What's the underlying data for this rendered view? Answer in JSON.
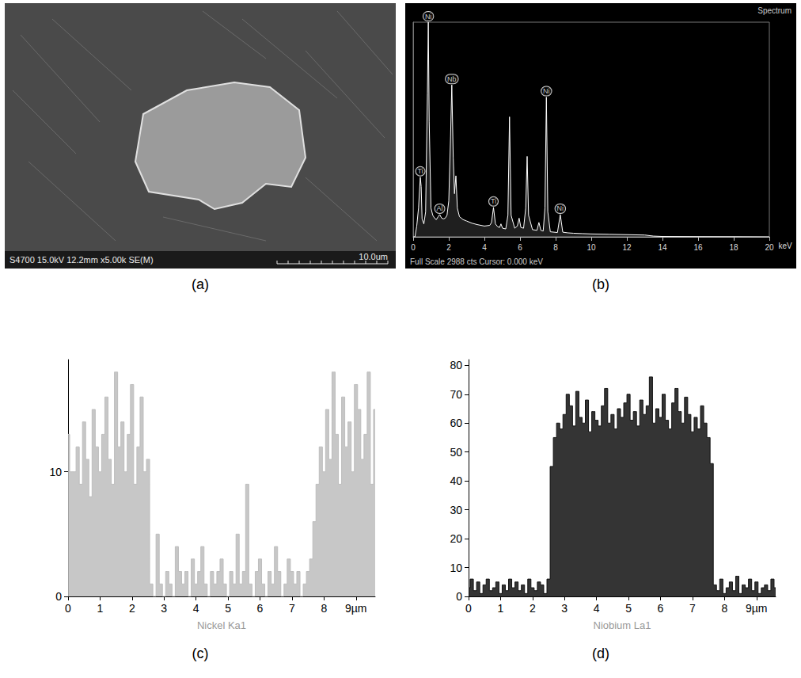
{
  "chart_data": [
    {
      "type": "micrograph",
      "panel": "(a)",
      "info_bar": "S4700 15.0kV 12.2mm x5.00k SE(M)",
      "scale_bar": "10.0um"
    },
    {
      "type": "spectrum",
      "panel": "(b)",
      "title": "Spectrum",
      "subtitle": "Full Scale 2988 cts Cursor: 0.000 keV",
      "x_label": "keV",
      "x": [
        0,
        0.1,
        0.2,
        0.3,
        0.4,
        0.45,
        0.5,
        0.6,
        0.7,
        0.8,
        0.85,
        0.9,
        1.0,
        1.1,
        1.2,
        1.3,
        1.4,
        1.49,
        1.6,
        1.7,
        1.8,
        1.9,
        2.0,
        2.1,
        2.17,
        2.25,
        2.32,
        2.4,
        2.48,
        2.6,
        2.8,
        3.0,
        3.3,
        3.6,
        4.0,
        4.3,
        4.4,
        4.51,
        4.62,
        4.75,
        4.85,
        4.93,
        5.02,
        5.2,
        5.32,
        5.41,
        5.5,
        5.7,
        5.85,
        5.95,
        6.05,
        6.2,
        6.32,
        6.4,
        6.48,
        6.7,
        6.95,
        7.06,
        7.17,
        7.3,
        7.4,
        7.48,
        7.56,
        7.7,
        8.1,
        8.26,
        8.4,
        8.7,
        9.0,
        9.5,
        10,
        11,
        12,
        13,
        13.5,
        14,
        16,
        18,
        20
      ],
      "values": [
        0,
        0,
        150,
        400,
        830,
        700,
        250,
        180,
        350,
        2000,
        2988,
        1600,
        400,
        300,
        260,
        240,
        280,
        310,
        260,
        250,
        260,
        300,
        500,
        1400,
        2115,
        1100,
        600,
        850,
        400,
        280,
        240,
        220,
        190,
        170,
        150,
        160,
        200,
        410,
        180,
        140,
        130,
        180,
        120,
        110,
        300,
        1670,
        300,
        120,
        150,
        260,
        130,
        120,
        400,
        1120,
        300,
        100,
        90,
        200,
        90,
        80,
        400,
        1945,
        350,
        70,
        60,
        310,
        65,
        55,
        50,
        45,
        40,
        35,
        30,
        25,
        10,
        5,
        3,
        2,
        0
      ],
      "color": "#ffffff",
      "xlim": [
        0,
        20
      ],
      "xticks": [
        0,
        2,
        4,
        6,
        8,
        10,
        12,
        14,
        16,
        18,
        20
      ],
      "ylim": [
        0,
        2988
      ],
      "tick_labels": "x",
      "grid": false,
      "annotations": [
        {
          "text": "Ni",
          "x": 0.85,
          "y": 2988
        },
        {
          "text": "Ti",
          "x": 0.4,
          "y": 830
        },
        {
          "text": "Al",
          "x": 1.49,
          "y": 310
        },
        {
          "text": "Nb",
          "x": 2.17,
          "y": 2115
        },
        {
          "text": "Ti",
          "x": 4.51,
          "y": 410
        },
        {
          "text": "Ni",
          "x": 7.48,
          "y": 1945
        },
        {
          "text": "Ni",
          "x": 8.26,
          "y": 310
        }
      ]
    },
    {
      "type": "line",
      "panel": "(c)",
      "x_label": "Nickel Ka1",
      "line_style": "step",
      "color": "#bdbdbd",
      "grid": false,
      "x": [
        0,
        0.1,
        0.2,
        0.3,
        0.4,
        0.5,
        0.6,
        0.7,
        0.8,
        0.9,
        1,
        1.1,
        1.2,
        1.3,
        1.4,
        1.5,
        1.6,
        1.7,
        1.8,
        1.9,
        2,
        2.1,
        2.2,
        2.3,
        2.4,
        2.5,
        2.6,
        2.7,
        2.8,
        2.9,
        3,
        3.1,
        3.2,
        3.3,
        3.4,
        3.5,
        3.6,
        3.7,
        3.8,
        3.9,
        4,
        4.1,
        4.2,
        4.3,
        4.4,
        4.5,
        4.6,
        4.7,
        4.8,
        4.9,
        5,
        5.1,
        5.2,
        5.3,
        5.4,
        5.5,
        5.6,
        5.7,
        5.8,
        5.9,
        6,
        6.1,
        6.2,
        6.3,
        6.4,
        6.5,
        6.6,
        6.7,
        6.8,
        6.9,
        7,
        7.1,
        7.2,
        7.3,
        7.4,
        7.5,
        7.6,
        7.7,
        7.8,
        7.9,
        8,
        8.1,
        8.2,
        8.3,
        8.4,
        8.5,
        8.6,
        8.7,
        8.8,
        8.9,
        9,
        9.1,
        9.2,
        9.3,
        9.4,
        9.5,
        9.6
      ],
      "values": [
        13,
        10,
        10,
        12,
        9,
        14,
        11,
        8,
        15,
        12,
        10,
        13,
        16,
        11,
        9,
        18,
        12,
        14,
        10,
        13,
        17,
        9,
        12,
        16,
        10,
        11,
        1,
        0,
        5,
        1,
        0,
        2,
        1,
        0,
        4,
        2,
        1,
        2,
        0,
        3,
        1,
        2,
        4,
        1,
        0,
        2,
        1,
        2,
        3,
        1,
        0,
        2,
        1,
        5,
        1,
        2,
        9,
        1,
        0,
        2,
        3,
        1,
        0,
        2,
        1,
        4,
        2,
        0,
        1,
        3,
        2,
        1,
        2,
        0,
        1,
        2,
        3,
        6,
        9,
        12,
        10,
        15,
        11,
        18,
        13,
        9,
        16,
        12,
        14,
        10,
        17,
        15,
        11,
        13,
        18,
        9,
        15
      ],
      "xlim": [
        0,
        9.6
      ],
      "xticks": [
        0,
        1,
        2,
        3,
        4,
        5,
        6,
        7,
        8,
        {
          "value": 9,
          "label": "9µm"
        }
      ],
      "ylim": [
        0,
        19
      ],
      "yticks": [
        0,
        10
      ]
    },
    {
      "type": "line",
      "panel": "(d)",
      "x_label": "Niobium La1",
      "line_style": "step",
      "color": "#111111",
      "grid": false,
      "x": [
        0,
        0.1,
        0.2,
        0.3,
        0.4,
        0.5,
        0.6,
        0.7,
        0.8,
        0.9,
        1,
        1.1,
        1.2,
        1.3,
        1.4,
        1.5,
        1.6,
        1.7,
        1.8,
        1.9,
        2,
        2.1,
        2.2,
        2.3,
        2.4,
        2.5,
        2.6,
        2.7,
        2.8,
        2.9,
        3,
        3.1,
        3.2,
        3.3,
        3.4,
        3.5,
        3.6,
        3.7,
        3.8,
        3.9,
        4,
        4.1,
        4.2,
        4.3,
        4.4,
        4.5,
        4.6,
        4.7,
        4.8,
        4.9,
        5,
        5.1,
        5.2,
        5.3,
        5.4,
        5.5,
        5.6,
        5.7,
        5.8,
        5.9,
        6,
        6.1,
        6.2,
        6.3,
        6.4,
        6.5,
        6.6,
        6.7,
        6.8,
        6.9,
        7,
        7.1,
        7.2,
        7.3,
        7.4,
        7.5,
        7.6,
        7.7,
        7.8,
        7.9,
        8,
        8.1,
        8.2,
        8.3,
        8.4,
        8.5,
        8.6,
        8.7,
        8.8,
        8.9,
        9,
        9.1,
        9.2,
        9.3,
        9.4,
        9.5,
        9.6
      ],
      "values": [
        3,
        6,
        2,
        5,
        1,
        4,
        6,
        2,
        3,
        5,
        1,
        4,
        2,
        6,
        3,
        5,
        2,
        4,
        1,
        6,
        3,
        2,
        5,
        4,
        1,
        6,
        45,
        55,
        60,
        58,
        63,
        70,
        66,
        59,
        71,
        62,
        60,
        68,
        57,
        64,
        61,
        59,
        66,
        72,
        60,
        63,
        58,
        65,
        62,
        67,
        70,
        61,
        64,
        59,
        68,
        63,
        66,
        76,
        60,
        65,
        62,
        70,
        61,
        58,
        67,
        72,
        64,
        60,
        69,
        63,
        57,
        62,
        58,
        66,
        60,
        55,
        46,
        4,
        2,
        6,
        1,
        3,
        5,
        2,
        7,
        1,
        4,
        3,
        6,
        2,
        5,
        1,
        3,
        4,
        2,
        6,
        3
      ],
      "xlim": [
        0,
        9.6
      ],
      "xticks": [
        0,
        1,
        2,
        3,
        4,
        5,
        6,
        7,
        8,
        {
          "value": 9,
          "label": "9µm"
        }
      ],
      "ylim": [
        0,
        82
      ],
      "yticks": [
        0,
        10,
        20,
        30,
        40,
        50,
        60,
        70,
        80
      ]
    }
  ]
}
